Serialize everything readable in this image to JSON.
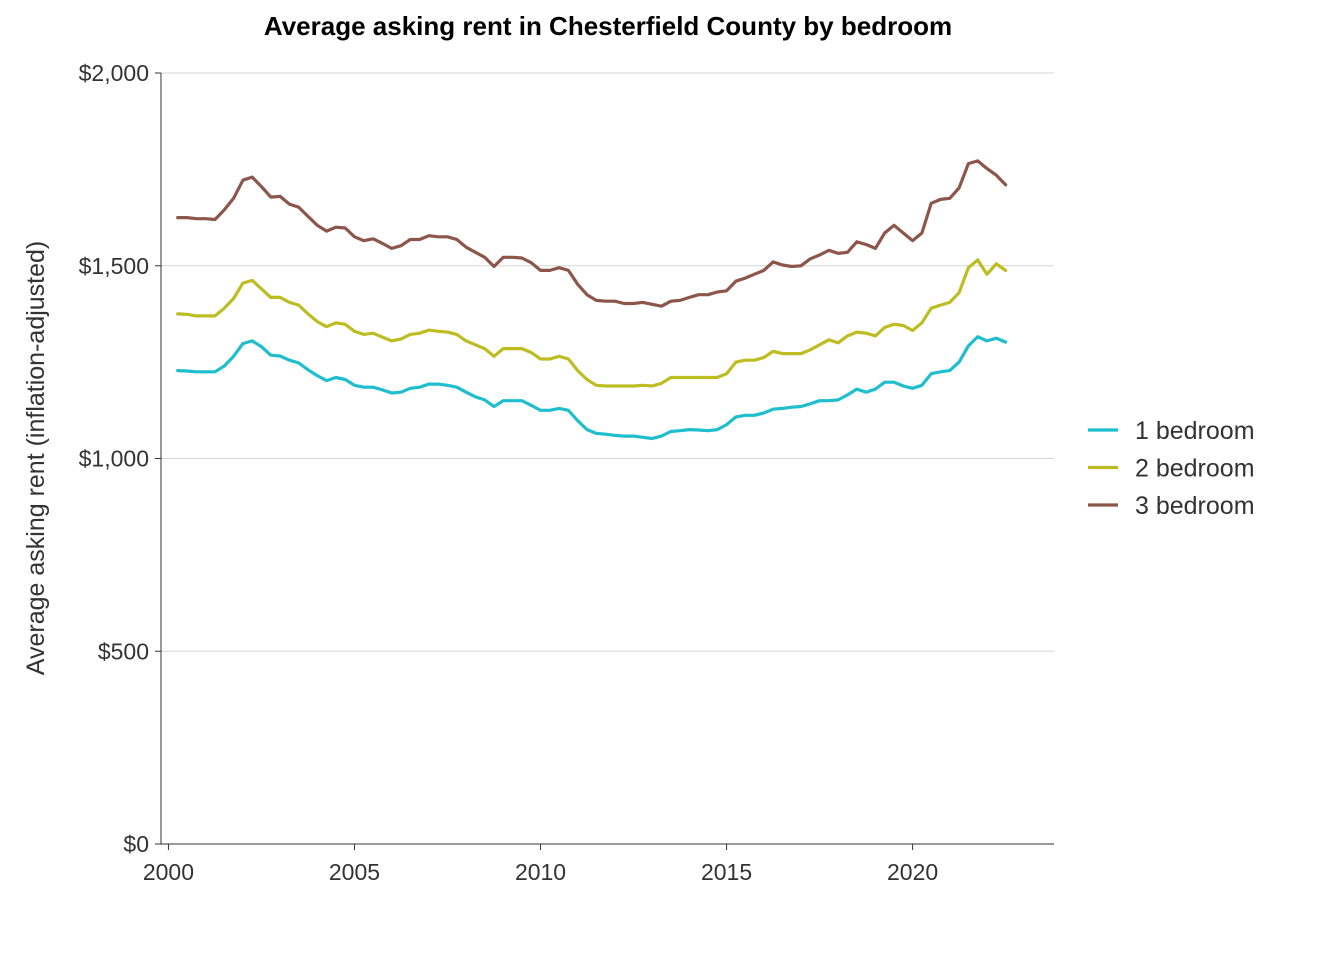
{
  "chart_data": {
    "type": "line",
    "title": "Average asking rent in Chesterfield County by bedroom",
    "xlabel": "",
    "ylabel": "Average asking rent (inflation-adjusted)",
    "xlim": [
      1999.8,
      2023.8
    ],
    "ylim": [
      0,
      2000
    ],
    "x_ticks": [
      2000,
      2005,
      2010,
      2015,
      2020
    ],
    "x_tick_labels": [
      "2000",
      "2005",
      "2010",
      "2015",
      "2020"
    ],
    "y_ticks": [
      0,
      500,
      1000,
      1500,
      2000
    ],
    "y_tick_labels": [
      "$0",
      "$500",
      "$1,000",
      "$1,500",
      "$2,000"
    ],
    "grid": "horizontal",
    "legend_position": "right",
    "series": [
      {
        "name": "1 bedroom",
        "color": "#1fbecf",
        "points": [
          [
            2000.25,
            1228
          ],
          [
            2000.5,
            1227
          ],
          [
            2000.75,
            1225
          ],
          [
            2001,
            1225
          ],
          [
            2001.25,
            1225
          ],
          [
            2001.5,
            1240
          ],
          [
            2001.75,
            1265
          ],
          [
            2002,
            1298
          ],
          [
            2002.25,
            1305
          ],
          [
            2002.5,
            1290
          ],
          [
            2002.75,
            1268
          ],
          [
            2003,
            1266
          ],
          [
            2003.25,
            1255
          ],
          [
            2003.5,
            1248
          ],
          [
            2003.75,
            1230
          ],
          [
            2004,
            1215
          ],
          [
            2004.25,
            1202
          ],
          [
            2004.5,
            1210
          ],
          [
            2004.75,
            1205
          ],
          [
            2005,
            1190
          ],
          [
            2005.25,
            1185
          ],
          [
            2005.5,
            1185
          ],
          [
            2005.75,
            1178
          ],
          [
            2006,
            1170
          ],
          [
            2006.25,
            1172
          ],
          [
            2006.5,
            1182
          ],
          [
            2006.75,
            1185
          ],
          [
            2007,
            1193
          ],
          [
            2007.25,
            1193
          ],
          [
            2007.5,
            1190
          ],
          [
            2007.75,
            1185
          ],
          [
            2008,
            1172
          ],
          [
            2008.25,
            1160
          ],
          [
            2008.5,
            1152
          ],
          [
            2008.75,
            1135
          ],
          [
            2009,
            1150
          ],
          [
            2009.25,
            1150
          ],
          [
            2009.5,
            1150
          ],
          [
            2009.75,
            1138
          ],
          [
            2010,
            1125
          ],
          [
            2010.25,
            1125
          ],
          [
            2010.5,
            1130
          ],
          [
            2010.75,
            1125
          ],
          [
            2011,
            1098
          ],
          [
            2011.25,
            1075
          ],
          [
            2011.5,
            1065
          ],
          [
            2011.75,
            1063
          ],
          [
            2012,
            1060
          ],
          [
            2012.25,
            1058
          ],
          [
            2012.5,
            1058
          ],
          [
            2012.75,
            1055
          ],
          [
            2013,
            1052
          ],
          [
            2013.25,
            1058
          ],
          [
            2013.5,
            1070
          ],
          [
            2013.75,
            1072
          ],
          [
            2014,
            1075
          ],
          [
            2014.25,
            1074
          ],
          [
            2014.5,
            1072
          ],
          [
            2014.75,
            1075
          ],
          [
            2015,
            1088
          ],
          [
            2015.25,
            1108
          ],
          [
            2015.5,
            1112
          ],
          [
            2015.75,
            1112
          ],
          [
            2016,
            1118
          ],
          [
            2016.25,
            1128
          ],
          [
            2016.5,
            1130
          ],
          [
            2016.75,
            1133
          ],
          [
            2017,
            1135
          ],
          [
            2017.25,
            1142
          ],
          [
            2017.5,
            1150
          ],
          [
            2017.75,
            1150
          ],
          [
            2018,
            1152
          ],
          [
            2018.25,
            1165
          ],
          [
            2018.5,
            1180
          ],
          [
            2018.75,
            1172
          ],
          [
            2019,
            1180
          ],
          [
            2019.25,
            1198
          ],
          [
            2019.5,
            1198
          ],
          [
            2019.75,
            1188
          ],
          [
            2020,
            1182
          ],
          [
            2020.25,
            1190
          ],
          [
            2020.5,
            1220
          ],
          [
            2020.75,
            1225
          ],
          [
            2021,
            1228
          ],
          [
            2021.25,
            1250
          ],
          [
            2021.5,
            1292
          ],
          [
            2021.75,
            1316
          ],
          [
            2022,
            1305
          ],
          [
            2022.25,
            1312
          ],
          [
            2022.5,
            1302
          ]
        ]
      },
      {
        "name": "2 bedroom",
        "color": "#bdbd22",
        "points": [
          [
            2000.25,
            1375
          ],
          [
            2000.5,
            1374
          ],
          [
            2000.75,
            1370
          ],
          [
            2001,
            1370
          ],
          [
            2001.25,
            1370
          ],
          [
            2001.5,
            1390
          ],
          [
            2001.75,
            1415
          ],
          [
            2002,
            1455
          ],
          [
            2002.25,
            1462
          ],
          [
            2002.5,
            1440
          ],
          [
            2002.75,
            1418
          ],
          [
            2003,
            1418
          ],
          [
            2003.25,
            1405
          ],
          [
            2003.5,
            1398
          ],
          [
            2003.75,
            1375
          ],
          [
            2004,
            1355
          ],
          [
            2004.25,
            1342
          ],
          [
            2004.5,
            1352
          ],
          [
            2004.75,
            1348
          ],
          [
            2005,
            1330
          ],
          [
            2005.25,
            1322
          ],
          [
            2005.5,
            1325
          ],
          [
            2005.75,
            1315
          ],
          [
            2006,
            1305
          ],
          [
            2006.25,
            1310
          ],
          [
            2006.5,
            1322
          ],
          [
            2006.75,
            1325
          ],
          [
            2007,
            1333
          ],
          [
            2007.25,
            1330
          ],
          [
            2007.5,
            1328
          ],
          [
            2007.75,
            1322
          ],
          [
            2008,
            1305
          ],
          [
            2008.25,
            1295
          ],
          [
            2008.5,
            1285
          ],
          [
            2008.75,
            1265
          ],
          [
            2009,
            1285
          ],
          [
            2009.25,
            1285
          ],
          [
            2009.5,
            1285
          ],
          [
            2009.75,
            1275
          ],
          [
            2010,
            1258
          ],
          [
            2010.25,
            1258
          ],
          [
            2010.5,
            1265
          ],
          [
            2010.75,
            1258
          ],
          [
            2011,
            1228
          ],
          [
            2011.25,
            1205
          ],
          [
            2011.5,
            1190
          ],
          [
            2011.75,
            1188
          ],
          [
            2012,
            1188
          ],
          [
            2012.25,
            1188
          ],
          [
            2012.5,
            1188
          ],
          [
            2012.75,
            1190
          ],
          [
            2013,
            1188
          ],
          [
            2013.25,
            1195
          ],
          [
            2013.5,
            1210
          ],
          [
            2013.75,
            1210
          ],
          [
            2014,
            1210
          ],
          [
            2014.25,
            1210
          ],
          [
            2014.5,
            1210
          ],
          [
            2014.75,
            1210
          ],
          [
            2015,
            1220
          ],
          [
            2015.25,
            1250
          ],
          [
            2015.5,
            1255
          ],
          [
            2015.75,
            1255
          ],
          [
            2016,
            1262
          ],
          [
            2016.25,
            1278
          ],
          [
            2016.5,
            1272
          ],
          [
            2016.75,
            1272
          ],
          [
            2017,
            1272
          ],
          [
            2017.25,
            1282
          ],
          [
            2017.5,
            1295
          ],
          [
            2017.75,
            1308
          ],
          [
            2018,
            1300
          ],
          [
            2018.25,
            1318
          ],
          [
            2018.5,
            1328
          ],
          [
            2018.75,
            1325
          ],
          [
            2019,
            1318
          ],
          [
            2019.25,
            1340
          ],
          [
            2019.5,
            1348
          ],
          [
            2019.75,
            1345
          ],
          [
            2020,
            1332
          ],
          [
            2020.25,
            1352
          ],
          [
            2020.5,
            1390
          ],
          [
            2020.75,
            1398
          ],
          [
            2021,
            1405
          ],
          [
            2021.25,
            1430
          ],
          [
            2021.5,
            1495
          ],
          [
            2021.75,
            1515
          ],
          [
            2022,
            1478
          ],
          [
            2022.25,
            1505
          ],
          [
            2022.5,
            1488
          ]
        ]
      },
      {
        "name": "3 bedroom",
        "color": "#8c564b",
        "points": [
          [
            2000.25,
            1625
          ],
          [
            2000.5,
            1625
          ],
          [
            2000.75,
            1622
          ],
          [
            2001,
            1622
          ],
          [
            2001.25,
            1620
          ],
          [
            2001.5,
            1645
          ],
          [
            2001.75,
            1675
          ],
          [
            2002,
            1722
          ],
          [
            2002.25,
            1730
          ],
          [
            2002.5,
            1705
          ],
          [
            2002.75,
            1678
          ],
          [
            2003,
            1680
          ],
          [
            2003.25,
            1660
          ],
          [
            2003.5,
            1652
          ],
          [
            2003.75,
            1628
          ],
          [
            2004,
            1605
          ],
          [
            2004.25,
            1590
          ],
          [
            2004.5,
            1600
          ],
          [
            2004.75,
            1598
          ],
          [
            2005,
            1575
          ],
          [
            2005.25,
            1565
          ],
          [
            2005.5,
            1570
          ],
          [
            2005.75,
            1558
          ],
          [
            2006,
            1545
          ],
          [
            2006.25,
            1552
          ],
          [
            2006.5,
            1568
          ],
          [
            2006.75,
            1568
          ],
          [
            2007,
            1578
          ],
          [
            2007.25,
            1575
          ],
          [
            2007.5,
            1575
          ],
          [
            2007.75,
            1568
          ],
          [
            2008,
            1548
          ],
          [
            2008.25,
            1535
          ],
          [
            2008.5,
            1522
          ],
          [
            2008.75,
            1498
          ],
          [
            2009,
            1522
          ],
          [
            2009.25,
            1522
          ],
          [
            2009.5,
            1520
          ],
          [
            2009.75,
            1508
          ],
          [
            2010,
            1488
          ],
          [
            2010.25,
            1488
          ],
          [
            2010.5,
            1495
          ],
          [
            2010.75,
            1488
          ],
          [
            2011,
            1452
          ],
          [
            2011.25,
            1425
          ],
          [
            2011.5,
            1410
          ],
          [
            2011.75,
            1408
          ],
          [
            2012,
            1408
          ],
          [
            2012.25,
            1402
          ],
          [
            2012.5,
            1402
          ],
          [
            2012.75,
            1405
          ],
          [
            2013,
            1400
          ],
          [
            2013.25,
            1395
          ],
          [
            2013.5,
            1408
          ],
          [
            2013.75,
            1410
          ],
          [
            2014,
            1418
          ],
          [
            2014.25,
            1425
          ],
          [
            2014.5,
            1425
          ],
          [
            2014.75,
            1432
          ],
          [
            2015,
            1435
          ],
          [
            2015.25,
            1460
          ],
          [
            2015.5,
            1468
          ],
          [
            2015.75,
            1478
          ],
          [
            2016,
            1488
          ],
          [
            2016.25,
            1510
          ],
          [
            2016.5,
            1502
          ],
          [
            2016.75,
            1498
          ],
          [
            2017,
            1500
          ],
          [
            2017.25,
            1518
          ],
          [
            2017.5,
            1528
          ],
          [
            2017.75,
            1540
          ],
          [
            2018,
            1532
          ],
          [
            2018.25,
            1535
          ],
          [
            2018.5,
            1562
          ],
          [
            2018.75,
            1555
          ],
          [
            2019,
            1545
          ],
          [
            2019.25,
            1585
          ],
          [
            2019.5,
            1605
          ],
          [
            2019.75,
            1585
          ],
          [
            2020,
            1565
          ],
          [
            2020.25,
            1585
          ],
          [
            2020.5,
            1662
          ],
          [
            2020.75,
            1672
          ],
          [
            2021,
            1675
          ],
          [
            2021.25,
            1702
          ],
          [
            2021.5,
            1765
          ],
          [
            2021.75,
            1772
          ],
          [
            2022,
            1752
          ],
          [
            2022.25,
            1735
          ],
          [
            2022.5,
            1710
          ]
        ]
      }
    ]
  }
}
